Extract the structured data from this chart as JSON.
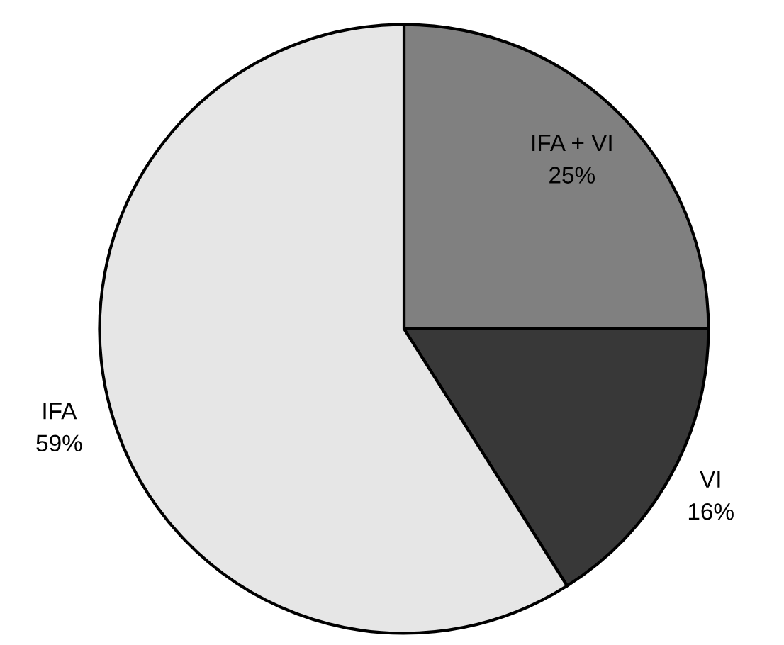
{
  "chart_data": {
    "type": "pie",
    "categories": [
      "IFA + VI",
      "VI",
      "IFA"
    ],
    "values": [
      25,
      16,
      59
    ],
    "colors": [
      "#808080",
      "#383838",
      "#e6e6e6"
    ],
    "value_labels": [
      "25%",
      "16%",
      "59%"
    ],
    "legend": false
  }
}
